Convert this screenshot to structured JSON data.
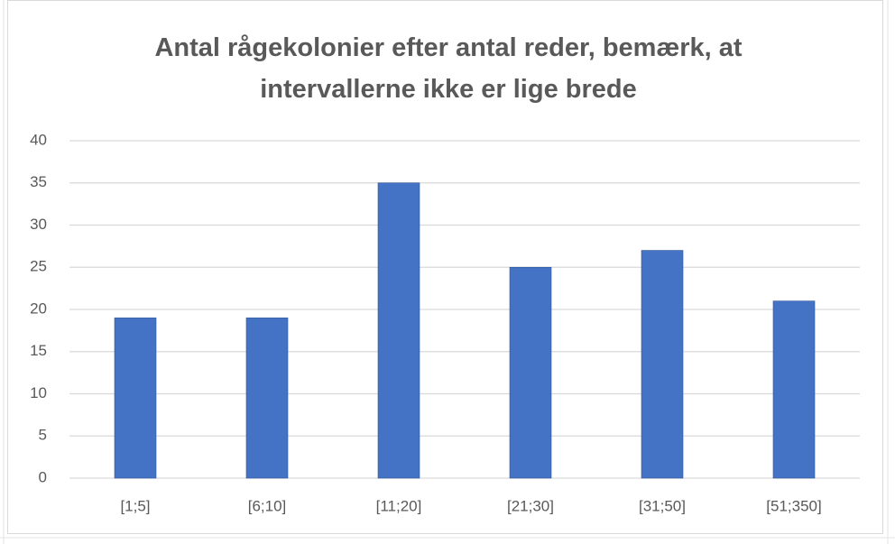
{
  "chart_data": {
    "type": "bar",
    "title": "Antal rågekolonier efter antal reder, bemærk, at intervallerne ikke er lige brede",
    "categories": [
      "[1;5]",
      "[6;10]",
      "[11;20]",
      "[21;30]",
      "[31;50]",
      "[51;350]"
    ],
    "values": [
      19,
      19,
      35,
      25,
      27,
      21
    ],
    "color": "#4472c4",
    "ylim": [
      0,
      40
    ],
    "yticks": [
      0,
      5,
      10,
      15,
      20,
      25,
      30,
      35,
      40
    ],
    "grid": true
  }
}
